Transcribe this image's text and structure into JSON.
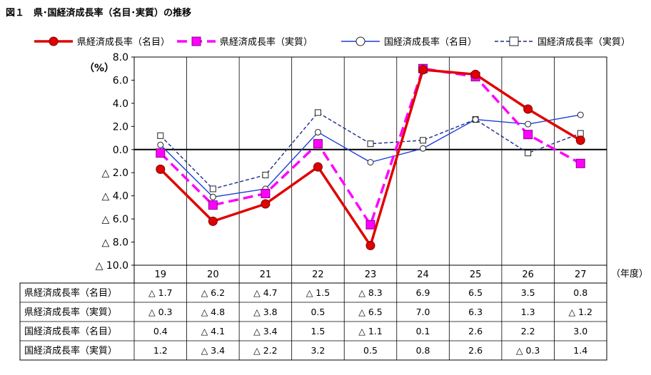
{
  "chart_data": {
    "type": "line",
    "title": "図１　県･国経済成長率（名目･実質）の推移",
    "ylabel": "（%）",
    "xlabel": "（年度）",
    "ylim": [
      -10,
      8
    ],
    "yticks": [
      8,
      6,
      4,
      2,
      0,
      -2,
      -4,
      -6,
      -8,
      -10
    ],
    "ytick_labels": [
      "8.0",
      "6.0",
      "4.0",
      "2.0",
      "0.0",
      "△ 2.0",
      "△ 4.0",
      "△ 6.0",
      "△ 8.0",
      "△ 10.0"
    ],
    "categories": [
      "19",
      "20",
      "21",
      "22",
      "23",
      "24",
      "25",
      "26",
      "27"
    ],
    "grid": true,
    "legend_position": "top",
    "series": [
      {
        "name": "県経済成長率（名目）",
        "color": "#e00000",
        "marker": "filled-circle",
        "line": "solid-thick",
        "values": [
          -1.7,
          -6.2,
          -4.7,
          -1.5,
          -8.3,
          6.9,
          6.5,
          3.5,
          0.8
        ],
        "labels": [
          "△ 1.7",
          "△ 6.2",
          "△ 4.7",
          "△ 1.5",
          "△ 8.3",
          "6.9",
          "6.5",
          "3.5",
          "0.8"
        ]
      },
      {
        "name": "県経済成長率（実質）",
        "color": "#ff00ff",
        "marker": "filled-square",
        "line": "dashed-thick",
        "values": [
          -0.3,
          -4.8,
          -3.8,
          0.5,
          -6.5,
          7.0,
          6.3,
          1.3,
          -1.2
        ],
        "labels": [
          "△ 0.3",
          "△ 4.8",
          "△ 3.8",
          "0.5",
          "△ 6.5",
          "7.0",
          "6.3",
          "1.3",
          "△ 1.2"
        ]
      },
      {
        "name": "国経済成長率（名目）",
        "color": "#1a3fd6",
        "marker": "open-circle",
        "line": "solid-thin",
        "values": [
          0.4,
          -4.1,
          -3.4,
          1.5,
          -1.1,
          0.1,
          2.6,
          2.2,
          3.0
        ],
        "labels": [
          "0.4",
          "△ 4.1",
          "△ 3.4",
          "1.5",
          "△ 1.1",
          "0.1",
          "2.6",
          "2.2",
          "3.0"
        ]
      },
      {
        "name": "国経済成長率（実質）",
        "color": "#1a2a8a",
        "marker": "open-square",
        "line": "dashed-thin",
        "values": [
          1.2,
          -3.4,
          -2.2,
          3.2,
          0.5,
          0.8,
          2.6,
          -0.3,
          1.4
        ],
        "labels": [
          "1.2",
          "△ 3.4",
          "△ 2.2",
          "3.2",
          "0.5",
          "0.8",
          "2.6",
          "△ 0.3",
          "1.4"
        ]
      }
    ]
  }
}
